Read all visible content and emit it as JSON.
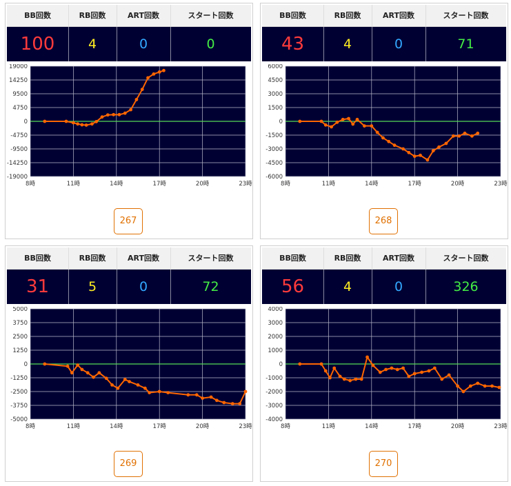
{
  "headers": {
    "bb": "BB回数",
    "rb": "RB回数",
    "art": "ART回数",
    "start": "スタート回数"
  },
  "colors": {
    "bb": "#ff3b3b",
    "rb": "#ffee22",
    "art": "#33a8ff",
    "start": "#44ee44",
    "line": "#ff6600",
    "zero": "#55dd55",
    "bg": "#000033"
  },
  "panels": [
    {
      "bb": "100",
      "rb": "4",
      "art": "0",
      "start": "0",
      "button": "267"
    },
    {
      "bb": "43",
      "rb": "4",
      "art": "0",
      "start": "71",
      "button": "268"
    },
    {
      "bb": "31",
      "rb": "5",
      "art": "0",
      "start": "72",
      "button": "269"
    },
    {
      "bb": "56",
      "rb": "4",
      "art": "0",
      "start": "326",
      "button": "270"
    }
  ],
  "chart_data": [
    {
      "type": "line",
      "x_ticks": [
        "8時",
        "11時",
        "14時",
        "17時",
        "20時",
        "23時"
      ],
      "y_ticks": [
        "19000",
        "14250",
        "9500",
        "4750",
        "0",
        "-4750",
        "-9500",
        "-14250",
        "-19000"
      ],
      "ylim": [
        -19000,
        19000
      ],
      "xlim": [
        8,
        23
      ],
      "x": [
        9.0,
        10.5,
        11.0,
        11.3,
        11.6,
        11.9,
        12.3,
        12.6,
        13.0,
        13.4,
        13.8,
        14.2,
        14.6,
        15.0,
        15.4,
        15.8,
        16.2,
        16.6,
        17.0,
        17.3
      ],
      "y": [
        0,
        0,
        -500,
        -900,
        -1200,
        -1300,
        -900,
        -100,
        1500,
        2200,
        2300,
        2300,
        2800,
        4000,
        7500,
        11000,
        15000,
        16300,
        17000,
        17500
      ]
    },
    {
      "type": "line",
      "x_ticks": [
        "8時",
        "11時",
        "14時",
        "17時",
        "20時",
        "23時"
      ],
      "y_ticks": [
        "6000",
        "4500",
        "3000",
        "1500",
        "0",
        "-1500",
        "-3000",
        "-4500",
        "-6000"
      ],
      "ylim": [
        -6000,
        6000
      ],
      "xlim": [
        8,
        23
      ],
      "x": [
        9.0,
        10.5,
        10.8,
        11.2,
        11.6,
        12.0,
        12.4,
        12.7,
        13.0,
        13.5,
        14.0,
        14.4,
        14.8,
        15.2,
        15.6,
        16.2,
        16.6,
        17.0,
        17.4,
        17.9,
        18.3,
        18.7,
        19.2,
        19.7,
        20.1,
        20.5,
        21.0,
        21.4
      ],
      "y": [
        0,
        0,
        -400,
        -600,
        -100,
        200,
        300,
        -300,
        200,
        -500,
        -500,
        -1200,
        -1800,
        -2200,
        -2600,
        -3000,
        -3400,
        -3800,
        -3700,
        -4200,
        -3200,
        -2800,
        -2400,
        -1600,
        -1600,
        -1300,
        -1600,
        -1300
      ]
    },
    {
      "type": "line",
      "x_ticks": [
        "8時",
        "11時",
        "14時",
        "17時",
        "20時",
        "23時"
      ],
      "y_ticks": [
        "5000",
        "3750",
        "2500",
        "1250",
        "0",
        "-1250",
        "-2500",
        "-3750",
        "-5000"
      ],
      "ylim": [
        -5000,
        5000
      ],
      "xlim": [
        8,
        23
      ],
      "x": [
        9.0,
        10.6,
        10.9,
        11.3,
        11.6,
        12.0,
        12.4,
        12.8,
        13.3,
        13.7,
        14.1,
        14.6,
        14.9,
        15.5,
        16.0,
        16.3,
        17.0,
        17.6,
        19.0,
        19.6,
        20.0,
        20.6,
        21.0,
        21.5,
        22.1,
        22.6,
        23.0
      ],
      "y": [
        0,
        -200,
        -800,
        -100,
        -500,
        -800,
        -1200,
        -800,
        -1300,
        -1900,
        -2200,
        -1400,
        -1600,
        -1900,
        -2200,
        -2600,
        -2500,
        -2600,
        -2800,
        -2800,
        -3100,
        -3000,
        -3300,
        -3500,
        -3600,
        -3600,
        -2500
      ]
    },
    {
      "type": "line",
      "x_ticks": [
        "8時",
        "11時",
        "14時",
        "17時",
        "20時",
        "23時"
      ],
      "y_ticks": [
        "4000",
        "3000",
        "2000",
        "1000",
        "0",
        "-1000",
        "-2000",
        "-3000",
        "-4000"
      ],
      "ylim": [
        -4000,
        4000
      ],
      "xlim": [
        8,
        23
      ],
      "x": [
        9.0,
        10.5,
        10.8,
        11.1,
        11.4,
        11.8,
        12.1,
        12.5,
        12.9,
        13.3,
        13.7,
        14.1,
        14.6,
        15.0,
        15.4,
        15.8,
        16.2,
        16.6,
        17.0,
        17.5,
        18.0,
        18.4,
        18.9,
        19.4,
        20.0,
        20.4,
        20.9,
        21.4,
        21.9,
        22.4,
        22.9
      ],
      "y": [
        0,
        0,
        -500,
        -1000,
        -300,
        -900,
        -1100,
        -1200,
        -1100,
        -1100,
        500,
        -100,
        -600,
        -400,
        -300,
        -400,
        -300,
        -900,
        -700,
        -600,
        -500,
        -300,
        -1100,
        -800,
        -1600,
        -2000,
        -1600,
        -1400,
        -1600,
        -1600,
        -1700
      ]
    }
  ]
}
